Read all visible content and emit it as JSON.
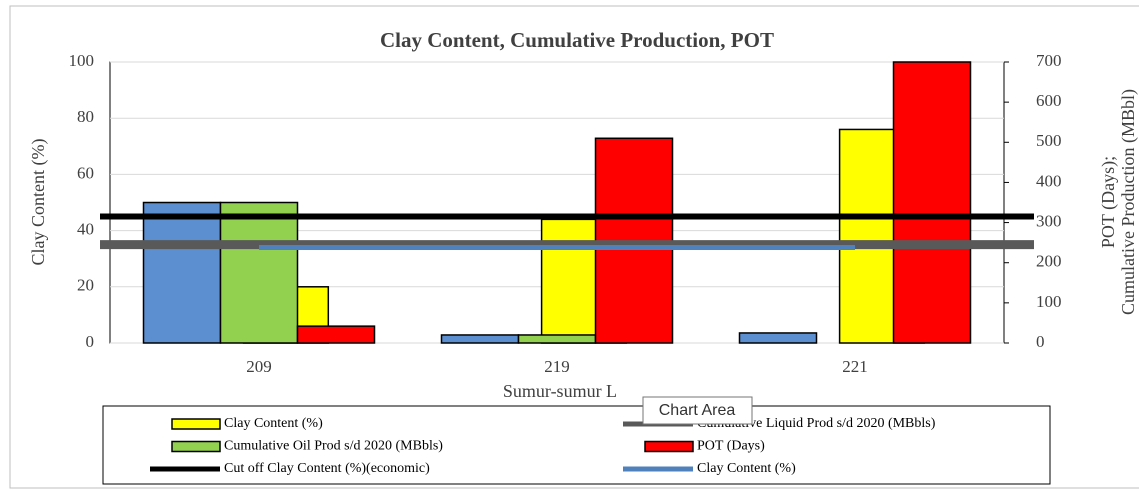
{
  "chart_data": {
    "type": "combo",
    "title": "Clay Content, Cumulative Production, POT",
    "categories": [
      "209",
      "219",
      "221"
    ],
    "xlabel": "Sumur-sumur L",
    "ylabel": "Clay Content (%)",
    "y2label": [
      "POT (Days);",
      "Cumulative Production (MBbl)"
    ],
    "ylim": [
      0,
      100
    ],
    "yticks": [
      0,
      20,
      40,
      60,
      80,
      100
    ],
    "y2lim": [
      0,
      700
    ],
    "y2ticks": [
      0,
      100,
      200,
      300,
      400,
      500,
      600,
      700
    ],
    "grid": true,
    "series": [
      {
        "name": "Clay Content (%)",
        "kind": "bar",
        "color": "#ffff00",
        "axis": "y",
        "values": [
          20,
          44,
          76
        ]
      },
      {
        "name": "Cumulative Liquid Prod s/d 2020 (MBbls)",
        "kind": "line",
        "color": "#595959",
        "axis": "y",
        "full_width": true,
        "values": [
          35,
          35,
          35
        ]
      },
      {
        "name": "Cumulative Oil Prod s/d 2020 (MBbls)",
        "kind": "bar",
        "color": "#92d050",
        "axis": "y2",
        "values": [
          350,
          20,
          0
        ]
      },
      {
        "name": "POT (Days)",
        "kind": "bar",
        "color": "#ff0000",
        "axis": "y2",
        "values": [
          42,
          510,
          700
        ]
      },
      {
        "name": "Cut off Clay Content (%)(economic)",
        "kind": "line",
        "color": "#000000",
        "axis": "y",
        "full_width": true,
        "values": [
          45,
          45,
          45
        ]
      },
      {
        "name": "Clay Content (%)",
        "kind": "line",
        "color": "#4f81bd",
        "axis": "y",
        "values": [
          34,
          34,
          34
        ]
      },
      {
        "kind": "bar",
        "color": "#5b8fd0",
        "axis": "y2",
        "values": [
          350,
          20,
          25
        ]
      }
    ],
    "tooltip": "Chart Area"
  }
}
